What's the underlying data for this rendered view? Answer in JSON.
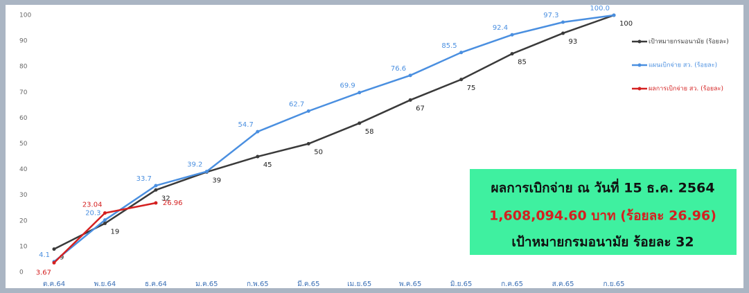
{
  "chart_data": {
    "type": "line",
    "categories": [
      "ต.ค.64",
      "พ.ย.64",
      "ธ.ค.64",
      "ม.ค.65",
      "ก.พ.65",
      "มี.ค.65",
      "เม.ย.65",
      "พ.ค.65",
      "มิ.ย.65",
      "ก.ค.65",
      "ส.ค.65",
      "ก.ย.65"
    ],
    "series": [
      {
        "name": "เป้าหมายกรมอนามัย (ร้อยละ)",
        "color": "#3a3a3a",
        "values": [
          9,
          19,
          32,
          39,
          45,
          50,
          58,
          67,
          75,
          85,
          93,
          100
        ]
      },
      {
        "name": "แผนเบิกจ่าย สว. (ร้อยละ)",
        "color": "#4a8fe0",
        "values": [
          4.1,
          20.3,
          33.7,
          39.2,
          54.7,
          62.7,
          69.9,
          76.6,
          85.5,
          92.4,
          97.3,
          100
        ],
        "value_labels": [
          "4.1",
          "20.3",
          "33.7",
          "39.2",
          "54.7",
          "62.7",
          "69.9",
          "76.6",
          "85.5",
          "92.4",
          "97.3",
          "100.0"
        ]
      },
      {
        "name": "ผลการเบิกจ่าย สว. (ร้อยละ)",
        "color": "#d42020",
        "values": [
          3.67,
          23.04,
          26.96,
          null,
          null,
          null,
          null,
          null,
          null,
          null,
          null,
          null
        ]
      }
    ],
    "ylim": [
      0,
      100
    ],
    "yticks": [
      0,
      10,
      20,
      30,
      40,
      50,
      60,
      70,
      80,
      90,
      100
    ],
    "grid": false,
    "annotations": [
      "ผลการเบิกจ่าย ณ วันที่ 15 ธ.ค. 2564",
      "1,608,094.60 บาท (ร้อยละ 26.96)",
      "เป้าหมายกรมอนามัย ร้อยละ 32"
    ]
  }
}
